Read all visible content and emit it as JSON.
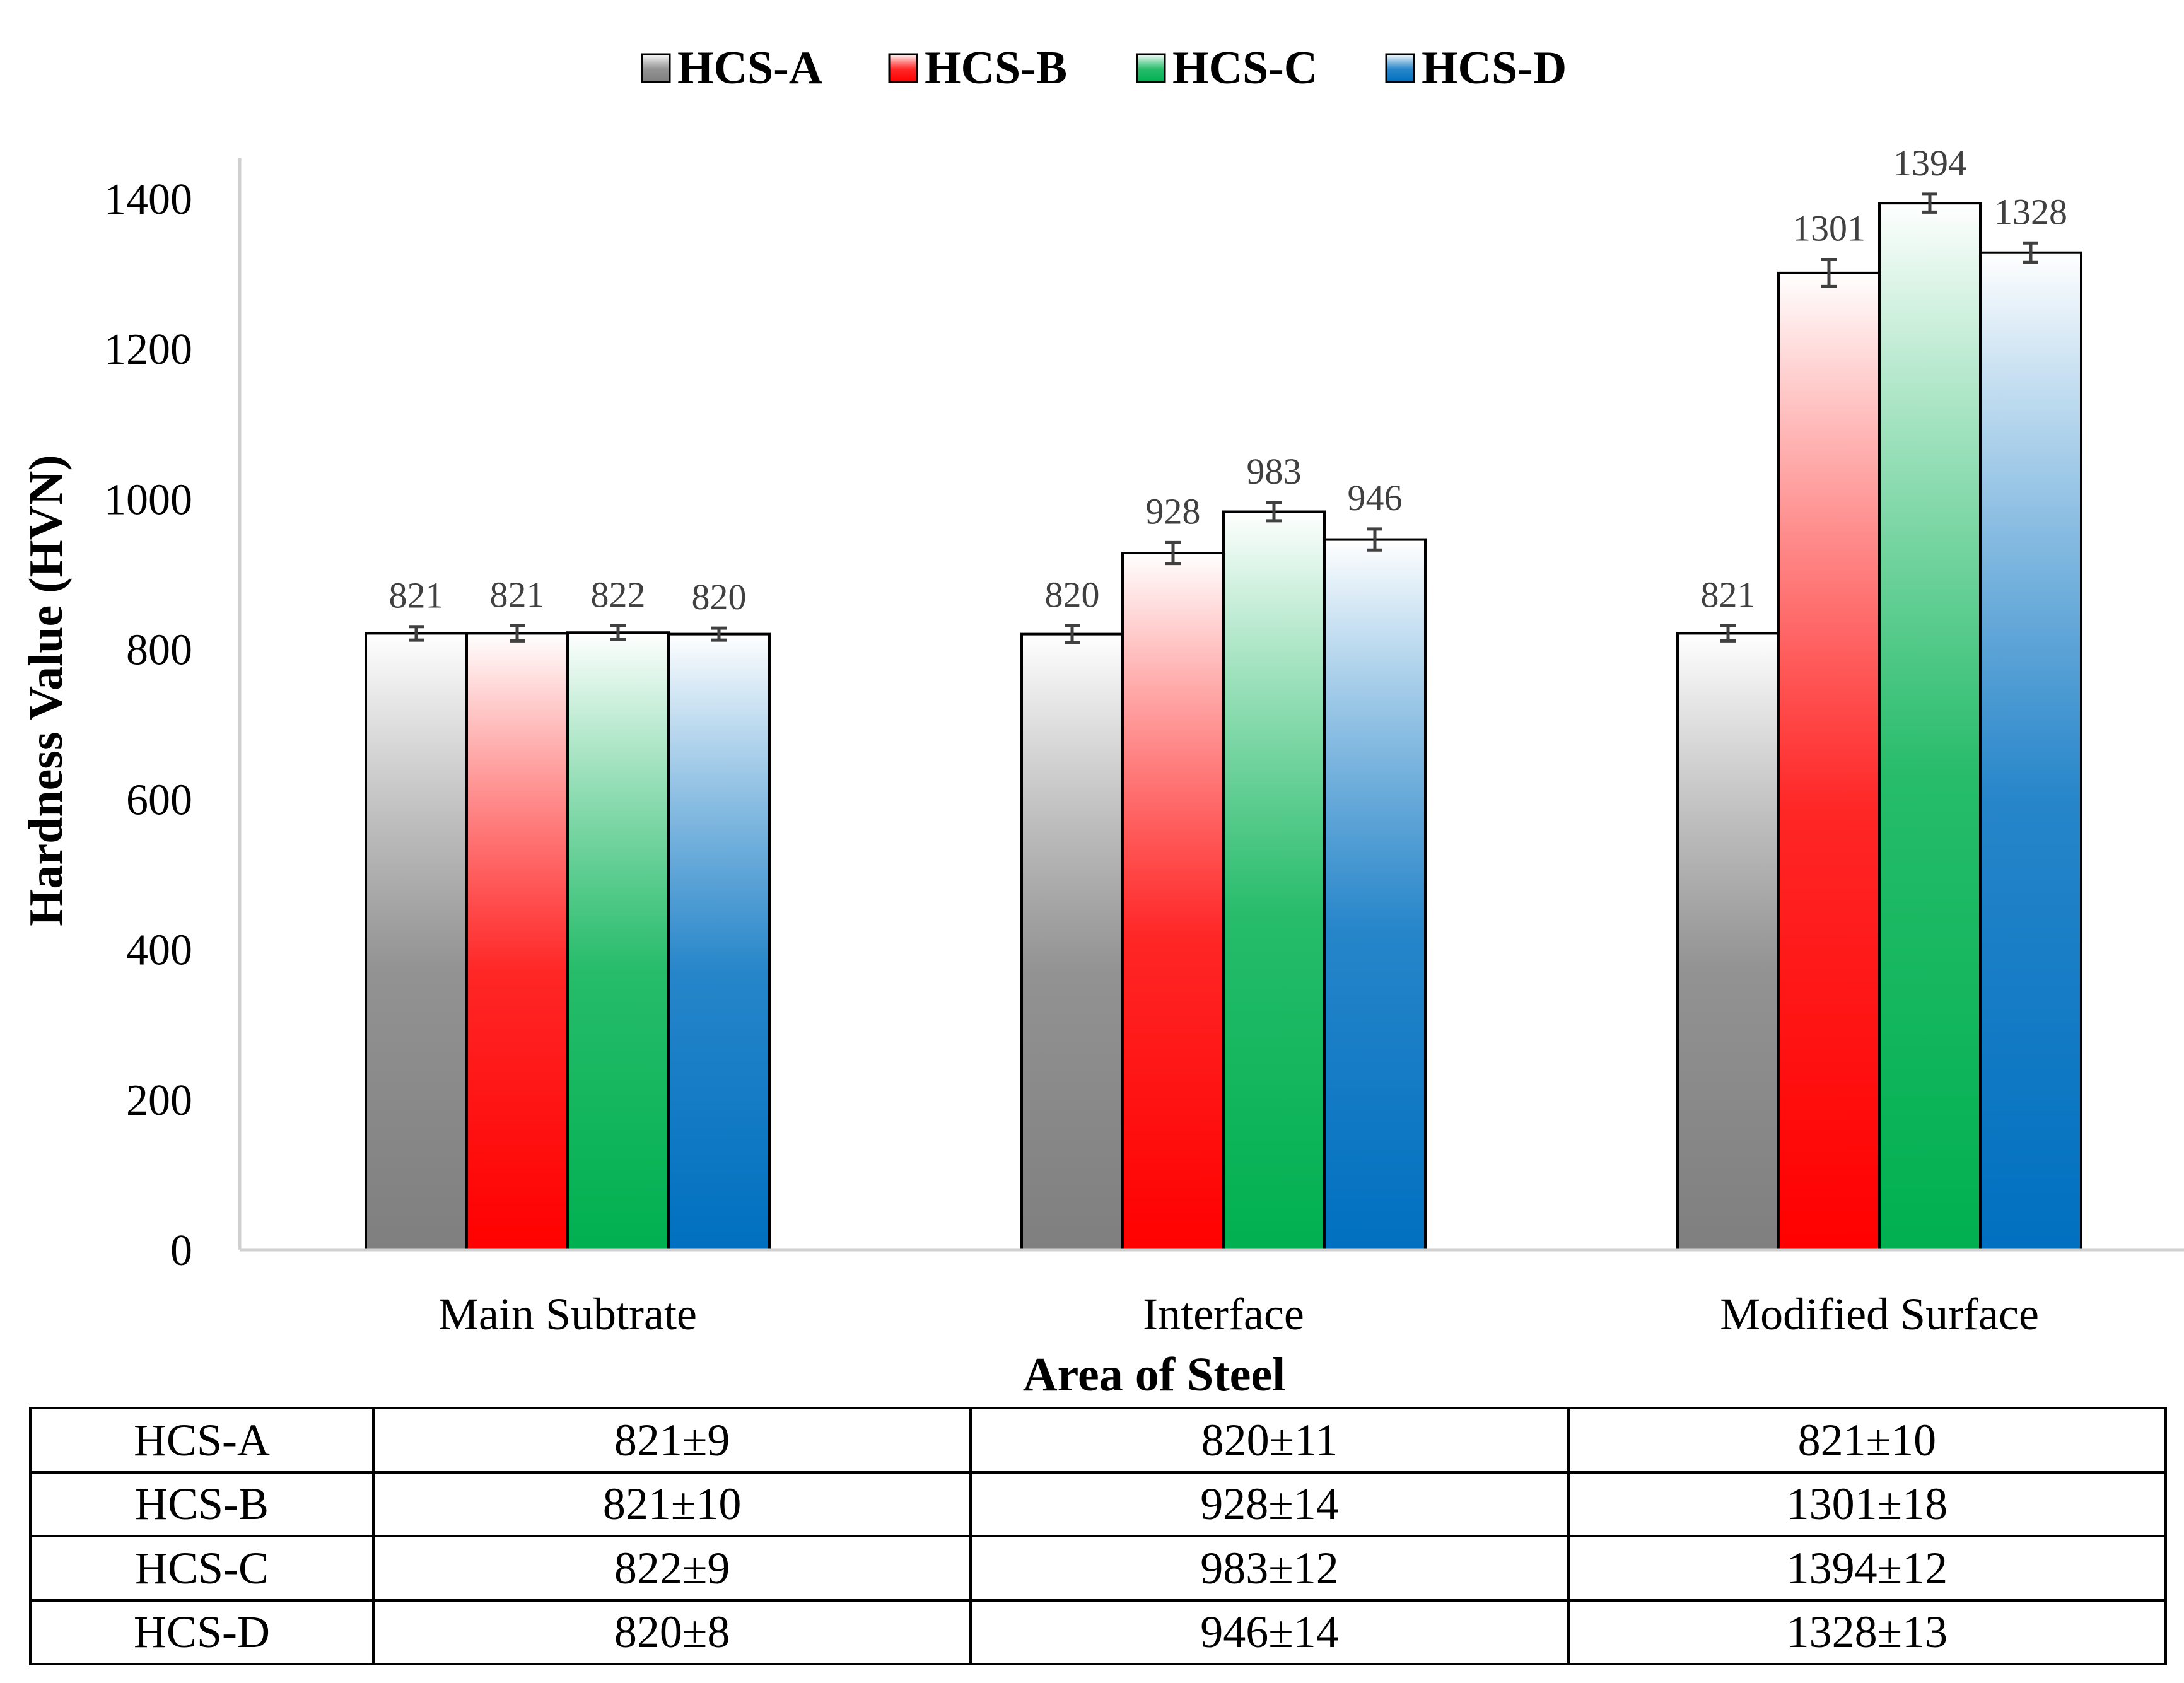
{
  "chart_data": {
    "type": "bar",
    "title": "",
    "xlabel": "Area of Steel",
    "ylabel": "Hardness Value (HVN)",
    "ylim": [
      0,
      1450
    ],
    "yticks": [
      0,
      200,
      400,
      600,
      800,
      1000,
      1200,
      1400
    ],
    "grid": false,
    "legend_position": "top",
    "categories": [
      "Main Subtrate",
      "Interface",
      "Modified Surface"
    ],
    "series": [
      {
        "name": "HCS-A",
        "values": [
          821,
          820,
          821
        ],
        "errors": [
          9,
          11,
          10
        ],
        "color": "#7f7f7f"
      },
      {
        "name": "HCS-B",
        "values": [
          821,
          928,
          1301
        ],
        "errors": [
          10,
          14,
          18
        ],
        "color": "#ff0000"
      },
      {
        "name": "HCS-C",
        "values": [
          822,
          983,
          1394
        ],
        "errors": [
          9,
          12,
          12
        ],
        "color": "#00b050"
      },
      {
        "name": "HCS-D",
        "values": [
          820,
          946,
          1328
        ],
        "errors": [
          8,
          14,
          13
        ],
        "color": "#0070c0"
      }
    ]
  },
  "table": {
    "rows": [
      {
        "label": "HCS-A",
        "cells": [
          "821±9",
          "820±11",
          "821±10"
        ]
      },
      {
        "label": "HCS-B",
        "cells": [
          "821±10",
          "928±14",
          "1301±18"
        ]
      },
      {
        "label": "HCS-C",
        "cells": [
          "822±9",
          "983±12",
          "1394±12"
        ]
      },
      {
        "label": "HCS-D",
        "cells": [
          "820±8",
          "946±14",
          "1328±13"
        ]
      }
    ]
  }
}
